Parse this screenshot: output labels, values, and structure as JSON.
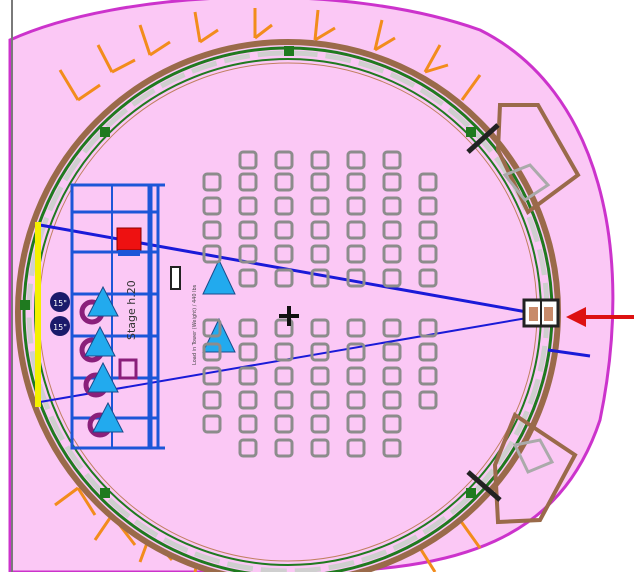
{
  "labels": {
    "stage_label": "Stage h.20",
    "side_note": "Load in Tower (Weight) / 440 lbs",
    "speaker_left_top": "15\"",
    "speaker_left_bottom": "15\""
  },
  "colors": {
    "tent_fill": "#fbc8f5",
    "outer_ring": "#cc33cc",
    "ring_green": "#1f7a1f",
    "ring_brown": "#9a6a4a",
    "stake_orange": "#f28c1c",
    "stage_blue": "#1c56d8",
    "beam_blue": "#1a1ad8",
    "seat_gray": "#8c8c8c",
    "triangle_cyan": "#22aaee",
    "wall_yellow": "#f4f000",
    "arrow_red": "#dd1111",
    "drum_purple": "#8a1f7a",
    "red_square": "#ee1111",
    "center_cross": "#111111"
  },
  "icons": {
    "arrow": "red-arrow-icon",
    "cross": "center-cross-icon",
    "triangle": "triangle-icon"
  }
}
